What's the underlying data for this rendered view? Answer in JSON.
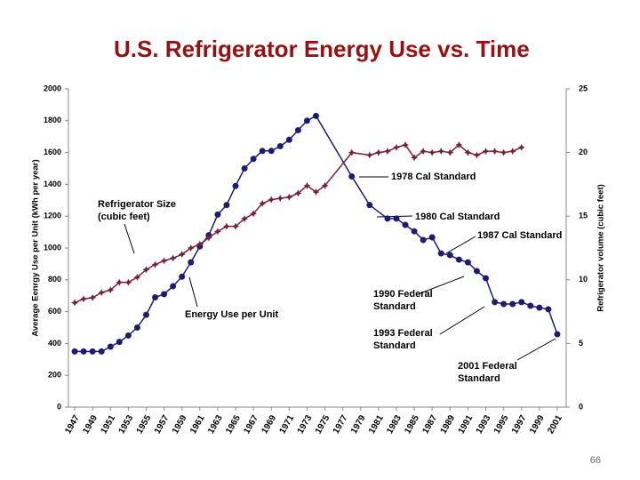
{
  "chart_data": {
    "type": "line",
    "title": "U.S. Refrigerator Energy Use vs. Time",
    "y_label": "Average Eenrgy Use per Unit (kWh per year)",
    "y2_label": "Refrigerator volume (cubic feet)",
    "xlim": [
      1946.3,
      2002
    ],
    "xticks": [
      1947,
      1949,
      1951,
      1953,
      1955,
      1957,
      1959,
      1961,
      1963,
      1965,
      1967,
      1969,
      1971,
      1973,
      1975,
      1977,
      1979,
      1981,
      1983,
      1985,
      1987,
      1989,
      1991,
      1993,
      1995,
      1997,
      1999,
      2001
    ],
    "ylim": [
      0,
      2000
    ],
    "yticks": [
      0,
      200,
      400,
      600,
      800,
      1000,
      1200,
      1400,
      1600,
      1800,
      2000
    ],
    "y2lim": [
      0,
      25
    ],
    "y2ticks": [
      0,
      5,
      10,
      15,
      20,
      25
    ],
    "series": [
      {
        "name": "Energy Use per Unit",
        "color": "#1c1c78",
        "marker": "circle",
        "x": [
          1947,
          1948,
          1949,
          1950,
          1951,
          1952,
          1953,
          1954,
          1955,
          1956,
          1957,
          1958,
          1959,
          1960,
          1961,
          1962,
          1963,
          1964,
          1965,
          1966,
          1967,
          1968,
          1969,
          1970,
          1971,
          1972,
          1973,
          1974,
          1978,
          1980,
          1982,
          1983,
          1984,
          1985,
          1986,
          1987,
          1988,
          1989,
          1990,
          1991,
          1992,
          1993,
          1994,
          1995,
          1996,
          1997,
          1998,
          1999,
          2000,
          2001
        ],
        "values": [
          350,
          350,
          350,
          350,
          380,
          410,
          450,
          500,
          580,
          690,
          710,
          760,
          820,
          910,
          1010,
          1080,
          1210,
          1270,
          1390,
          1500,
          1560,
          1610,
          1610,
          1640,
          1680,
          1740,
          1800,
          1830,
          1450,
          1270,
          1185,
          1185,
          1145,
          1105,
          1050,
          1067,
          966,
          955,
          927,
          910,
          855,
          810,
          660,
          648,
          648,
          660,
          637,
          625,
          615,
          458
        ]
      },
      {
        "name": "Refrigerator Size (cubic feet)",
        "color": "#7a2035",
        "marker": "star",
        "axis": "y2",
        "x": [
          1947,
          1948,
          1949,
          1950,
          1951,
          1952,
          1953,
          1954,
          1955,
          1956,
          1957,
          1958,
          1959,
          1960,
          1961,
          1962,
          1963,
          1964,
          1965,
          1966,
          1967,
          1968,
          1969,
          1970,
          1971,
          1972,
          1973,
          1974,
          1975,
          1978,
          1980,
          1981,
          1982,
          1983,
          1984,
          1985,
          1986,
          1987,
          1988,
          1989,
          1990,
          1991,
          1992,
          1993,
          1994,
          1995,
          1996,
          1997
        ],
        "values": [
          8.2,
          8.5,
          8.6,
          9.0,
          9.2,
          9.8,
          9.8,
          10.2,
          10.8,
          11.2,
          11.5,
          11.7,
          12.0,
          12.5,
          12.8,
          13.3,
          13.8,
          14.2,
          14.2,
          14.8,
          15.2,
          16.0,
          16.3,
          16.4,
          16.5,
          16.8,
          17.4,
          16.9,
          17.4,
          20.0,
          19.8,
          20.0,
          20.1,
          20.4,
          20.6,
          19.6,
          20.1,
          20.0,
          20.1,
          20.0,
          20.6,
          20.0,
          19.8,
          20.1,
          20.1,
          20.0,
          20.1,
          20.4
        ]
      }
    ],
    "annotations": [
      "1978 Cal Standard",
      "1980 Cal Standard",
      "1987 Cal Standard",
      "1990 Federal Standard",
      "1993 Federal Standard",
      "2001 Federal Standard"
    ],
    "page_number": 66
  }
}
